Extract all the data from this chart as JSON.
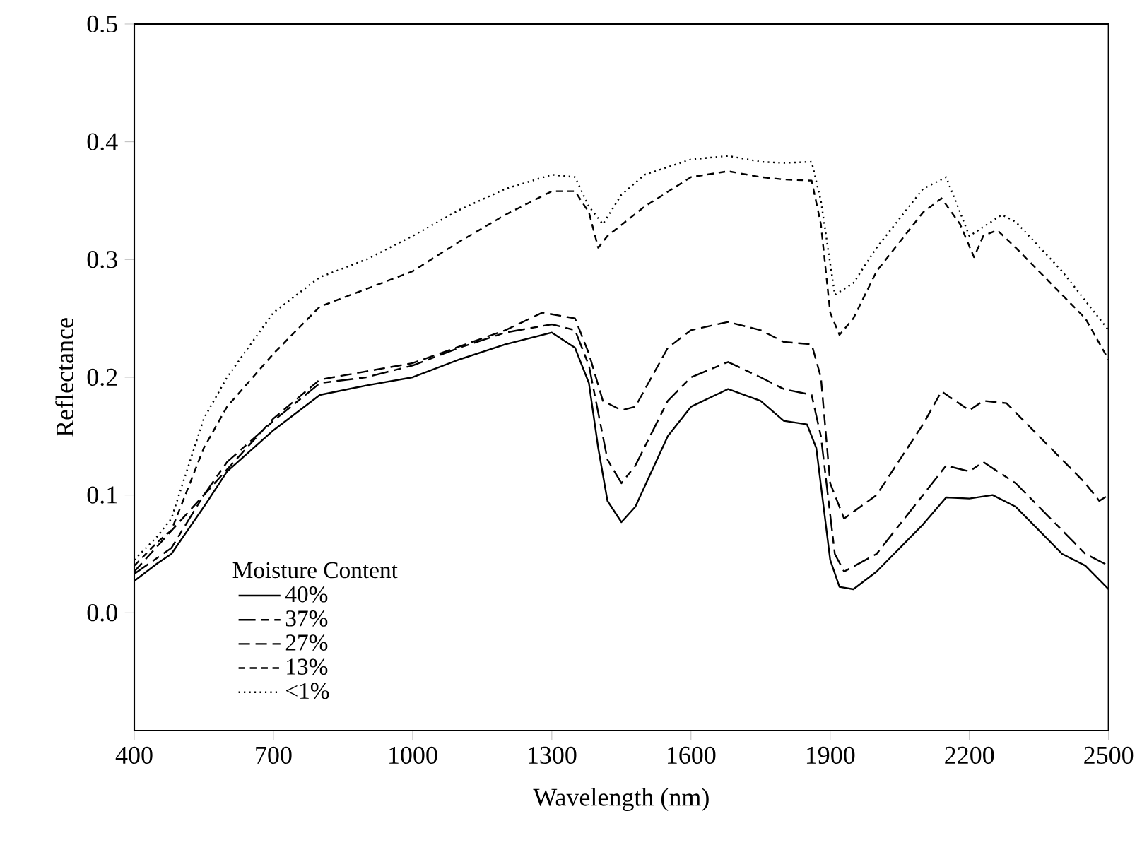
{
  "chart_data": {
    "type": "line",
    "xlabel": "Wavelength (nm)",
    "ylabel": "Reflectance",
    "legend_title": "Moisture Content",
    "legend": "bottom left",
    "grid": false,
    "xlim": [
      400,
      2500
    ],
    "ylim": [
      -0.1,
      0.5
    ],
    "xticks": [
      400,
      700,
      1000,
      1300,
      1600,
      1900,
      2200,
      2500
    ],
    "yticks": [
      {
        "value": 0,
        "label": "0.0"
      },
      0.1,
      0.2,
      0.3,
      0.4,
      0.5
    ],
    "series": [
      {
        "name": "40%",
        "color": "#000000",
        "line_style": "solid",
        "x": [
          400,
          450,
          480,
          550,
          600,
          700,
          800,
          900,
          1000,
          1100,
          1200,
          1300,
          1350,
          1380,
          1400,
          1420,
          1450,
          1480,
          1550,
          1600,
          1680,
          1750,
          1800,
          1850,
          1870,
          1900,
          1920,
          1950,
          2000,
          2100,
          2150,
          2200,
          2250,
          2300,
          2400,
          2450,
          2500
        ],
        "values": [
          0.027,
          0.042,
          0.05,
          0.09,
          0.12,
          0.155,
          0.185,
          0.193,
          0.2,
          0.215,
          0.228,
          0.238,
          0.225,
          0.195,
          0.14,
          0.095,
          0.077,
          0.09,
          0.15,
          0.175,
          0.19,
          0.18,
          0.163,
          0.16,
          0.14,
          0.045,
          0.022,
          0.02,
          0.035,
          0.075,
          0.098,
          0.097,
          0.1,
          0.09,
          0.05,
          0.04,
          0.02
        ]
      },
      {
        "name": "37%",
        "color": "#000000",
        "line_style": "dashed",
        "x": [
          400,
          480,
          550,
          600,
          700,
          800,
          900,
          1000,
          1100,
          1200,
          1300,
          1350,
          1380,
          1420,
          1450,
          1480,
          1550,
          1600,
          1680,
          1750,
          1800,
          1860,
          1880,
          1910,
          1930,
          2000,
          2100,
          2150,
          2200,
          2230,
          2300,
          2400,
          2450,
          2500
        ],
        "values": [
          0.033,
          0.055,
          0.1,
          0.128,
          0.163,
          0.195,
          0.2,
          0.21,
          0.225,
          0.238,
          0.245,
          0.24,
          0.21,
          0.13,
          0.11,
          0.125,
          0.18,
          0.2,
          0.213,
          0.2,
          0.19,
          0.185,
          0.15,
          0.05,
          0.035,
          0.05,
          0.1,
          0.125,
          0.12,
          0.128,
          0.11,
          0.07,
          0.05,
          0.04
        ]
      },
      {
        "name": "27%",
        "color": "#000000",
        "line_style": "dashed",
        "x": [
          400,
          550,
          700,
          800,
          1000,
          1200,
          1280,
          1350,
          1380,
          1410,
          1450,
          1480,
          1550,
          1600,
          1680,
          1750,
          1800,
          1860,
          1880,
          1900,
          1930,
          2000,
          2100,
          2140,
          2200,
          2230,
          2280,
          2350,
          2450,
          2480,
          2500
        ],
        "values": [
          0.035,
          0.1,
          0.165,
          0.198,
          0.212,
          0.24,
          0.255,
          0.25,
          0.22,
          0.18,
          0.172,
          0.175,
          0.225,
          0.24,
          0.247,
          0.24,
          0.23,
          0.228,
          0.2,
          0.11,
          0.08,
          0.1,
          0.16,
          0.188,
          0.172,
          0.18,
          0.178,
          0.15,
          0.11,
          0.095,
          0.1
        ]
      },
      {
        "name": "13%",
        "color": "#000000",
        "line_style": "dashed",
        "x": [
          400,
          450,
          480,
          550,
          600,
          700,
          800,
          900,
          1000,
          1100,
          1200,
          1300,
          1350,
          1380,
          1400,
          1420,
          1500,
          1600,
          1680,
          1750,
          1800,
          1860,
          1880,
          1900,
          1920,
          1950,
          2000,
          2100,
          2140,
          2180,
          2210,
          2230,
          2260,
          2300,
          2400,
          2450,
          2500
        ],
        "values": [
          0.04,
          0.06,
          0.07,
          0.14,
          0.175,
          0.22,
          0.26,
          0.275,
          0.29,
          0.315,
          0.338,
          0.358,
          0.358,
          0.34,
          0.31,
          0.32,
          0.345,
          0.37,
          0.375,
          0.37,
          0.368,
          0.367,
          0.33,
          0.255,
          0.236,
          0.25,
          0.29,
          0.34,
          0.352,
          0.33,
          0.302,
          0.32,
          0.325,
          0.31,
          0.27,
          0.25,
          0.215
        ]
      },
      {
        "name": "<1%",
        "color": "#000000",
        "line_style": "dotted",
        "x": [
          400,
          450,
          480,
          550,
          600,
          700,
          800,
          900,
          1000,
          1100,
          1200,
          1300,
          1350,
          1380,
          1410,
          1450,
          1500,
          1600,
          1680,
          1750,
          1800,
          1860,
          1880,
          1910,
          1950,
          2000,
          2100,
          2150,
          2200,
          2220,
          2270,
          2300,
          2400,
          2500
        ],
        "values": [
          0.045,
          0.065,
          0.08,
          0.165,
          0.2,
          0.255,
          0.285,
          0.3,
          0.32,
          0.342,
          0.36,
          0.372,
          0.37,
          0.345,
          0.33,
          0.355,
          0.372,
          0.385,
          0.388,
          0.383,
          0.382,
          0.383,
          0.35,
          0.27,
          0.28,
          0.31,
          0.36,
          0.37,
          0.32,
          0.325,
          0.338,
          0.332,
          0.29,
          0.24
        ]
      }
    ]
  }
}
